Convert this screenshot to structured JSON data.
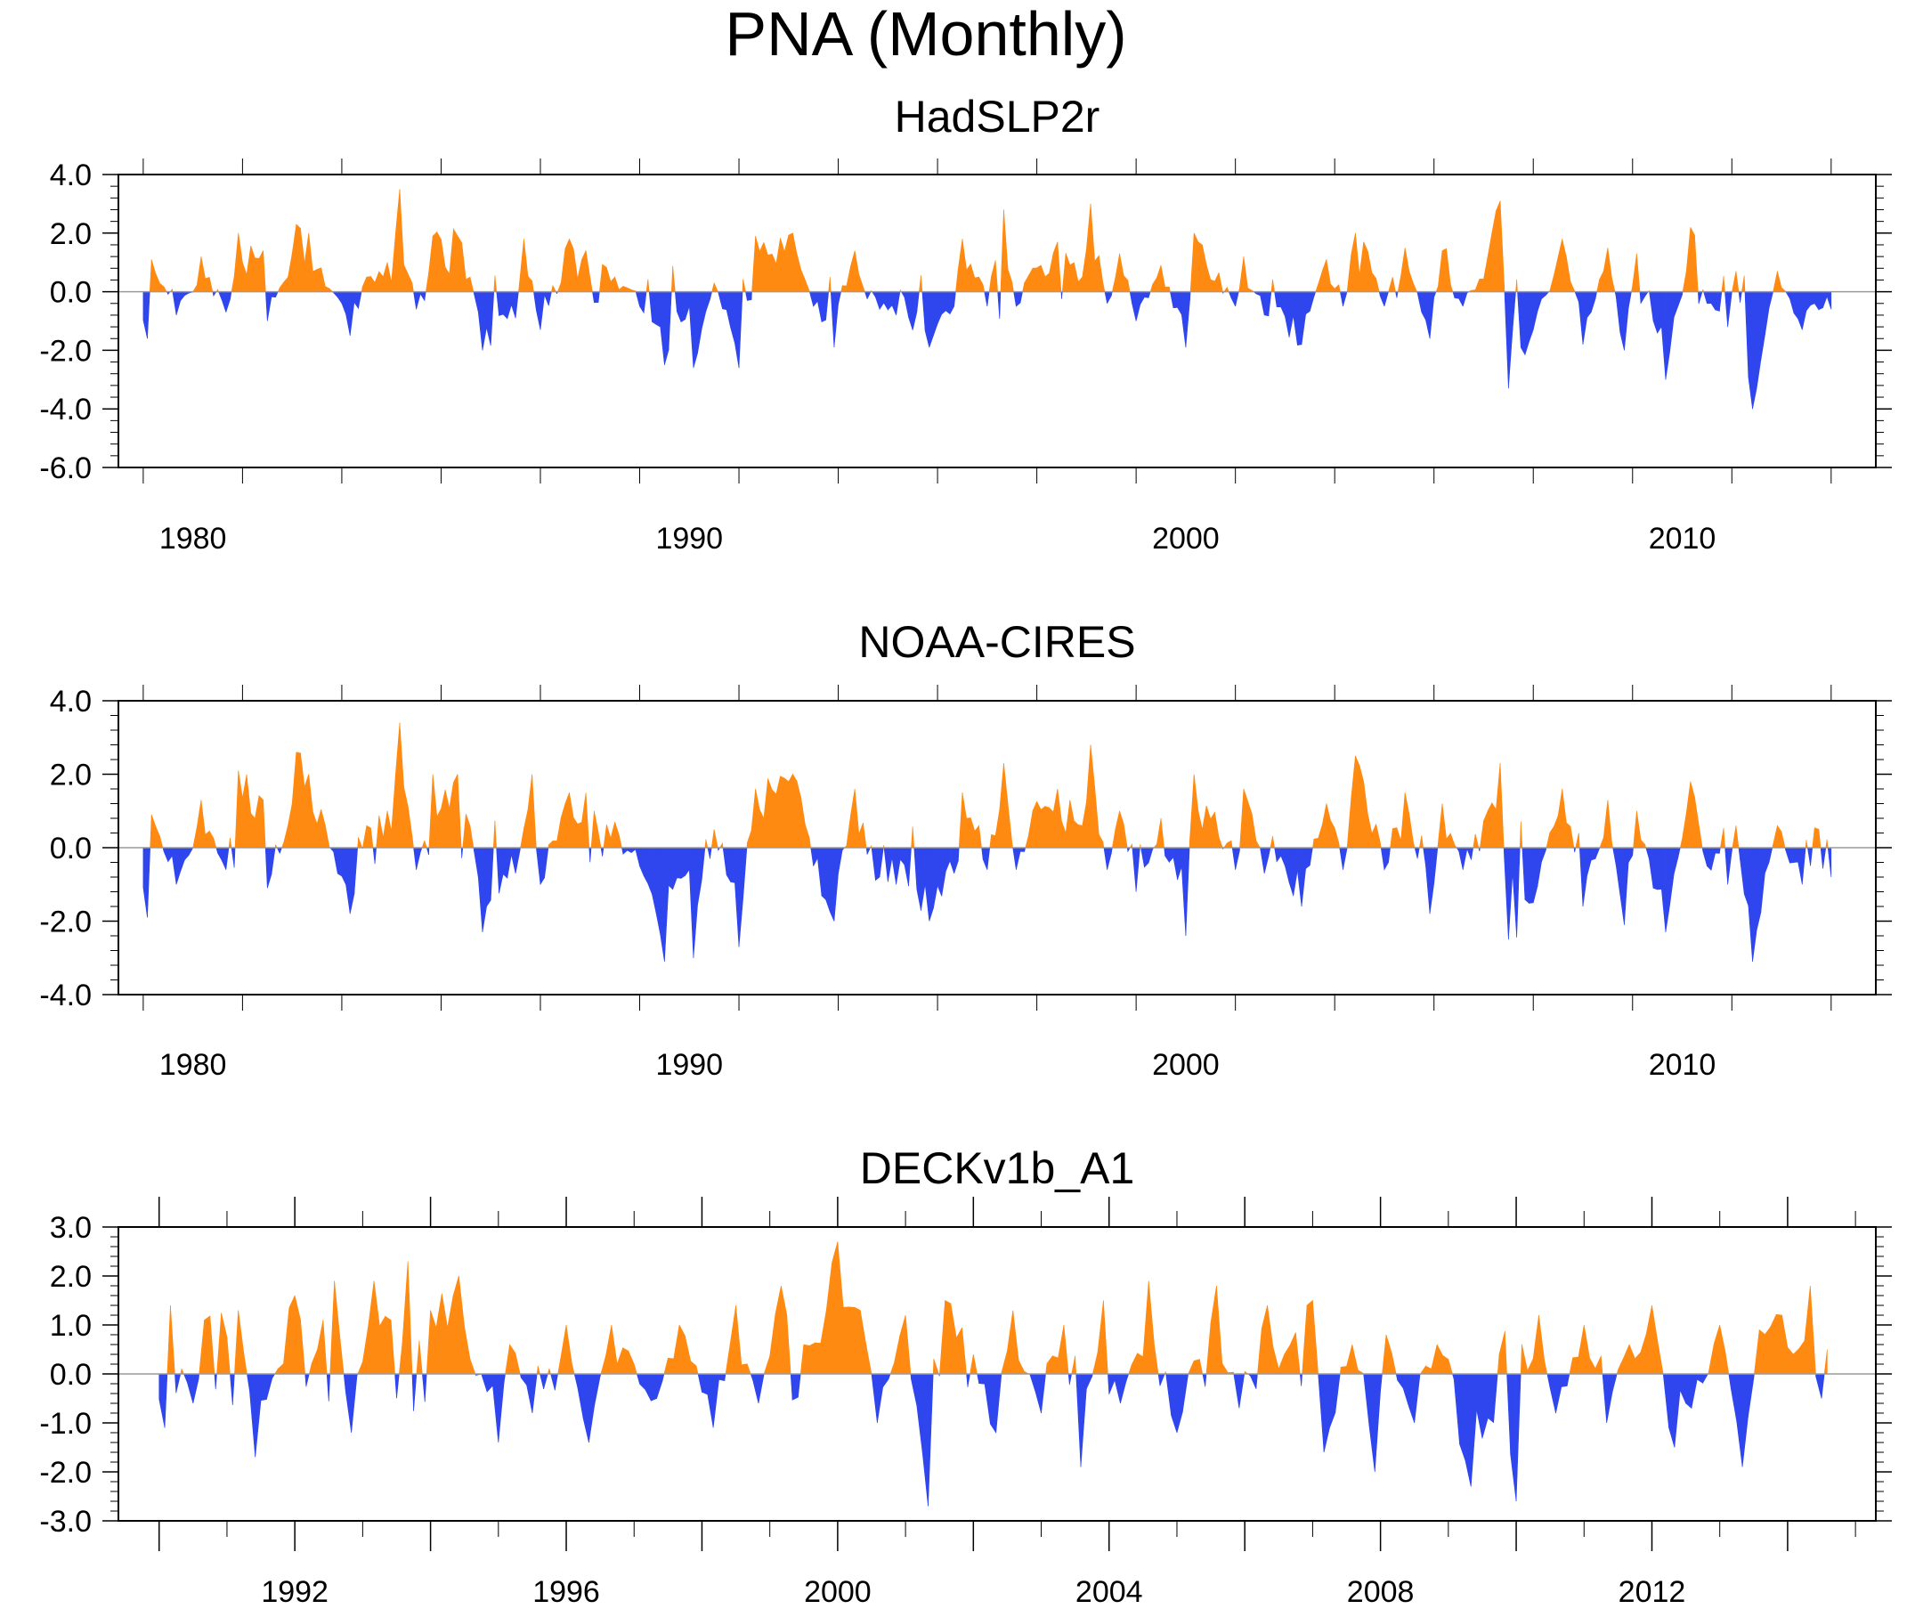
{
  "title": "PNA (Monthly)",
  "colors": {
    "positive": "#ff8a12",
    "negative": "#2f46ee"
  },
  "chart_data": [
    {
      "type": "area",
      "title": "HadSLP2r",
      "ylim": [
        -6,
        4
      ],
      "yticks": [
        4,
        2,
        0,
        -2,
        -4,
        -6
      ],
      "ytick_labels": [
        "4.0",
        "2.0",
        "0.0",
        "-2.0",
        "-4.0",
        "-6.0"
      ],
      "xlim": [
        1978.5,
        2013.9
      ],
      "xticks": [
        1980,
        1990,
        2000,
        2010
      ],
      "xtick_labels": [
        "1980",
        "1990",
        "2000",
        "2010"
      ],
      "data_start": 1979.0,
      "data_end": 2013.0,
      "series_seed": 11,
      "anchors": [
        [
          1979.1,
          -1.6
        ],
        [
          1979.2,
          1.1
        ],
        [
          1979.7,
          -0.8
        ],
        [
          1980.2,
          1.2
        ],
        [
          1980.7,
          -0.7
        ],
        [
          1980.9,
          2.0
        ],
        [
          1981.4,
          1.4
        ],
        [
          1981.5,
          -1.0
        ],
        [
          1982.0,
          1.3
        ],
        [
          1982.1,
          2.3
        ],
        [
          1982.3,
          2.0
        ],
        [
          1983.2,
          -1.5
        ],
        [
          1983.5,
          0.5
        ],
        [
          1983.9,
          1.0
        ],
        [
          1984.1,
          2.0
        ],
        [
          1984.15,
          3.5
        ],
        [
          1984.5,
          -0.6
        ],
        [
          1984.8,
          1.9
        ],
        [
          1985.3,
          1.9
        ],
        [
          1985.6,
          0.5
        ],
        [
          1985.8,
          -2.0
        ],
        [
          1986.5,
          -0.9
        ],
        [
          1986.7,
          1.8
        ],
        [
          1987.0,
          -1.3
        ],
        [
          1987.6,
          1.8
        ],
        [
          1988.5,
          0.5
        ],
        [
          1989.0,
          -0.5
        ],
        [
          1989.5,
          -2.5
        ],
        [
          1990.0,
          -0.5
        ],
        [
          1990.1,
          -2.6
        ],
        [
          1990.5,
          0.3
        ],
        [
          1991.0,
          -2.6
        ],
        [
          1991.3,
          1.9
        ],
        [
          1992.1,
          2.0
        ],
        [
          1992.5,
          -0.5
        ],
        [
          1992.9,
          -1.9
        ],
        [
          1993.3,
          1.4
        ],
        [
          1993.8,
          -0.6
        ],
        [
          1994.2,
          -0.8
        ],
        [
          1994.8,
          -1.9
        ],
        [
          1995.3,
          -0.5
        ],
        [
          1995.5,
          1.8
        ],
        [
          1995.8,
          0.5
        ],
        [
          1996.0,
          -0.5
        ],
        [
          1996.3,
          2.8
        ],
        [
          1996.6,
          -0.5
        ],
        [
          1996.9,
          0.8
        ],
        [
          1997.4,
          1.7
        ],
        [
          1997.9,
          0.5
        ],
        [
          1998.1,
          3.0
        ],
        [
          1998.4,
          -0.4
        ],
        [
          1998.7,
          1.3
        ],
        [
          1999.0,
          -1.0
        ],
        [
          1999.5,
          0.9
        ],
        [
          2000.0,
          -1.9
        ],
        [
          2000.2,
          2.0
        ],
        [
          2001.0,
          -0.5
        ],
        [
          2001.2,
          1.2
        ],
        [
          2001.6,
          -0.8
        ],
        [
          2002.3,
          -1.8
        ],
        [
          2002.8,
          1.1
        ],
        [
          2003.2,
          -0.5
        ],
        [
          2003.4,
          2.0
        ],
        [
          2003.6,
          1.7
        ],
        [
          2004.0,
          -0.5
        ],
        [
          2004.4,
          1.5
        ],
        [
          2004.9,
          -1.6
        ],
        [
          2005.2,
          1.4
        ],
        [
          2005.6,
          -0.5
        ],
        [
          2006.1,
          1.2
        ],
        [
          2006.3,
          3.1
        ],
        [
          2006.5,
          -3.3
        ],
        [
          2007.0,
          -1.3
        ],
        [
          2007.6,
          1.8
        ],
        [
          2008.0,
          -1.8
        ],
        [
          2008.5,
          1.5
        ],
        [
          2008.8,
          -2.0
        ],
        [
          2009.1,
          1.3
        ],
        [
          2009.4,
          -1.0
        ],
        [
          2009.7,
          -3.0
        ],
        [
          2010.2,
          2.2
        ],
        [
          2010.5,
          -0.4
        ],
        [
          2010.9,
          -1.2
        ],
        [
          2011.1,
          0.7
        ],
        [
          2011.4,
          -4.0
        ],
        [
          2011.9,
          0.7
        ],
        [
          2012.4,
          -1.3
        ],
        [
          2013.0,
          -0.6
        ]
      ]
    },
    {
      "type": "area",
      "title": "NOAA-CIRES",
      "ylim": [
        -4,
        4
      ],
      "yticks": [
        4,
        2,
        0,
        -2,
        -4
      ],
      "ytick_labels": [
        "4.0",
        "2.0",
        "0.0",
        "-2.0",
        "-4.0"
      ],
      "xlim": [
        1978.5,
        2013.9
      ],
      "xticks": [
        1980,
        1990,
        2000,
        2010
      ],
      "xtick_labels": [
        "1980",
        "1990",
        "2000",
        "2010"
      ],
      "data_start": 1979.0,
      "data_end": 2013.0,
      "series_seed": 23,
      "anchors": [
        [
          1979.1,
          -1.9
        ],
        [
          1979.2,
          0.9
        ],
        [
          1979.7,
          -1.0
        ],
        [
          1980.2,
          1.3
        ],
        [
          1980.7,
          -0.6
        ],
        [
          1980.9,
          2.1
        ],
        [
          1981.4,
          1.3
        ],
        [
          1981.5,
          -1.1
        ],
        [
          1982.0,
          1.2
        ],
        [
          1982.1,
          2.6
        ],
        [
          1982.3,
          2.0
        ],
        [
          1983.2,
          -1.8
        ],
        [
          1983.5,
          0.6
        ],
        [
          1983.9,
          1.0
        ],
        [
          1984.1,
          2.0
        ],
        [
          1984.15,
          3.4
        ],
        [
          1984.5,
          -0.6
        ],
        [
          1984.8,
          2.0
        ],
        [
          1985.3,
          2.0
        ],
        [
          1985.6,
          0.6
        ],
        [
          1985.8,
          -2.3
        ],
        [
          1986.5,
          -0.7
        ],
        [
          1986.8,
          2.0
        ],
        [
          1987.0,
          -1.0
        ],
        [
          1987.6,
          1.5
        ],
        [
          1988.5,
          0.7
        ],
        [
          1989.0,
          -0.5
        ],
        [
          1989.5,
          -3.1
        ],
        [
          1990.0,
          -0.6
        ],
        [
          1990.1,
          -3.0
        ],
        [
          1990.5,
          0.5
        ],
        [
          1991.0,
          -2.7
        ],
        [
          1991.3,
          1.6
        ],
        [
          1992.1,
          2.0
        ],
        [
          1992.5,
          -0.5
        ],
        [
          1992.9,
          -2.0
        ],
        [
          1993.3,
          1.6
        ],
        [
          1993.8,
          -0.8
        ],
        [
          1994.2,
          -1.0
        ],
        [
          1994.8,
          -2.0
        ],
        [
          1995.3,
          -0.7
        ],
        [
          1995.5,
          1.5
        ],
        [
          1995.8,
          0.6
        ],
        [
          1996.0,
          -0.6
        ],
        [
          1996.3,
          2.3
        ],
        [
          1996.6,
          -0.6
        ],
        [
          1996.9,
          1.0
        ],
        [
          1997.4,
          1.6
        ],
        [
          1997.9,
          0.6
        ],
        [
          1998.1,
          2.8
        ],
        [
          1998.4,
          -0.6
        ],
        [
          1998.7,
          1.0
        ],
        [
          1999.0,
          -1.2
        ],
        [
          1999.5,
          0.8
        ],
        [
          2000.0,
          -2.4
        ],
        [
          2000.2,
          2.0
        ],
        [
          2001.0,
          -0.6
        ],
        [
          2001.2,
          1.6
        ],
        [
          2001.6,
          -0.7
        ],
        [
          2002.3,
          -1.6
        ],
        [
          2002.8,
          1.2
        ],
        [
          2003.2,
          -0.6
        ],
        [
          2003.4,
          2.5
        ],
        [
          2003.6,
          1.8
        ],
        [
          2004.0,
          -0.6
        ],
        [
          2004.4,
          1.5
        ],
        [
          2004.9,
          -1.8
        ],
        [
          2005.2,
          1.2
        ],
        [
          2005.6,
          -0.6
        ],
        [
          2006.1,
          1.0
        ],
        [
          2006.3,
          2.3
        ],
        [
          2006.5,
          -2.5
        ],
        [
          2007.0,
          -1.5
        ],
        [
          2007.6,
          1.6
        ],
        [
          2008.0,
          -1.6
        ],
        [
          2008.5,
          1.3
        ],
        [
          2008.8,
          -2.1
        ],
        [
          2009.1,
          1.0
        ],
        [
          2009.4,
          -1.1
        ],
        [
          2009.7,
          -2.3
        ],
        [
          2010.2,
          1.8
        ],
        [
          2010.5,
          -0.5
        ],
        [
          2010.9,
          -1.0
        ],
        [
          2011.1,
          0.6
        ],
        [
          2011.4,
          -3.1
        ],
        [
          2011.9,
          0.6
        ],
        [
          2012.4,
          -1.0
        ],
        [
          2013.0,
          -0.8
        ]
      ]
    },
    {
      "type": "area",
      "title": "DECKv1b_A1",
      "ylim": [
        -3,
        3
      ],
      "yticks": [
        3,
        2,
        1,
        0,
        -1,
        -2,
        -3
      ],
      "ytick_labels": [
        "3.0",
        "2.0",
        "1.0",
        "0.0",
        "-1.0",
        "-2.0",
        "-3.0"
      ],
      "xlim": [
        1989.4,
        2015.3
      ],
      "xticks": [
        1990,
        1992,
        1994,
        1996,
        1998,
        2000,
        2002,
        2004,
        2006,
        2008,
        2010,
        2012,
        2014
      ],
      "xtick_labels": [
        "",
        "1992",
        "",
        "1996",
        "",
        "2000",
        "",
        "2004",
        "",
        "2008",
        "",
        "2012",
        ""
      ],
      "data_start": 1990.0,
      "data_end": 2014.6,
      "series_seed": 37,
      "anchors": [
        [
          1990.05,
          -1.1
        ],
        [
          1990.15,
          1.4
        ],
        [
          1990.5,
          -0.6
        ],
        [
          1990.7,
          1.1
        ],
        [
          1991.2,
          1.3
        ],
        [
          1991.4,
          -1.7
        ],
        [
          1992.0,
          1.6
        ],
        [
          1992.3,
          0.5
        ],
        [
          1992.6,
          1.9
        ],
        [
          1992.8,
          -1.2
        ],
        [
          1993.2,
          1.9
        ],
        [
          1993.4,
          1.1
        ],
        [
          1993.7,
          2.3
        ],
        [
          1994.0,
          1.3
        ],
        [
          1994.4,
          2.0
        ],
        [
          1994.6,
          0.3
        ],
        [
          1995.0,
          -1.4
        ],
        [
          1995.2,
          0.6
        ],
        [
          1995.5,
          -0.8
        ],
        [
          1996.0,
          1.0
        ],
        [
          1996.3,
          -1.4
        ],
        [
          1996.7,
          1.0
        ],
        [
          1997.0,
          0.2
        ],
        [
          1997.3,
          -0.5
        ],
        [
          1997.7,
          1.0
        ],
        [
          1998.2,
          -1.1
        ],
        [
          1998.5,
          1.4
        ],
        [
          1998.8,
          -0.6
        ],
        [
          1999.2,
          1.8
        ],
        [
          1999.5,
          0.6
        ],
        [
          1999.8,
          1.3
        ],
        [
          2000.0,
          2.7
        ],
        [
          2000.3,
          1.3
        ],
        [
          2000.6,
          -1.0
        ],
        [
          2001.0,
          1.2
        ],
        [
          2001.3,
          -2.7
        ],
        [
          2001.6,
          1.5
        ],
        [
          2002.0,
          0.4
        ],
        [
          2002.3,
          -1.2
        ],
        [
          2002.6,
          1.3
        ],
        [
          2003.0,
          -0.8
        ],
        [
          2003.3,
          1.0
        ],
        [
          2003.6,
          -1.9
        ],
        [
          2003.9,
          1.5
        ],
        [
          2004.2,
          -0.6
        ],
        [
          2004.6,
          1.9
        ],
        [
          2005.0,
          -1.2
        ],
        [
          2005.3,
          0.3
        ],
        [
          2005.6,
          1.8
        ],
        [
          2005.9,
          -0.7
        ],
        [
          2006.3,
          1.4
        ],
        [
          2006.6,
          0.4
        ],
        [
          2007.0,
          1.5
        ],
        [
          2007.2,
          -1.6
        ],
        [
          2007.6,
          0.6
        ],
        [
          2007.9,
          -2.0
        ],
        [
          2008.1,
          0.8
        ],
        [
          2008.5,
          -1.0
        ],
        [
          2008.8,
          0.6
        ],
        [
          2009.0,
          0.3
        ],
        [
          2009.3,
          -2.3
        ],
        [
          2009.6,
          -0.9
        ],
        [
          2010.0,
          -2.6
        ],
        [
          2010.3,
          1.2
        ],
        [
          2010.6,
          -0.8
        ],
        [
          2011.0,
          1.0
        ],
        [
          2011.3,
          -1.0
        ],
        [
          2011.7,
          0.6
        ],
        [
          2012.0,
          1.4
        ],
        [
          2012.3,
          -1.5
        ],
        [
          2012.6,
          -0.7
        ],
        [
          2013.0,
          1.0
        ],
        [
          2013.3,
          -1.9
        ],
        [
          2013.6,
          0.9
        ],
        [
          2013.9,
          1.2
        ],
        [
          2014.1,
          0.4
        ],
        [
          2014.3,
          1.8
        ],
        [
          2014.5,
          -0.5
        ],
        [
          2014.6,
          0.5
        ]
      ]
    }
  ]
}
